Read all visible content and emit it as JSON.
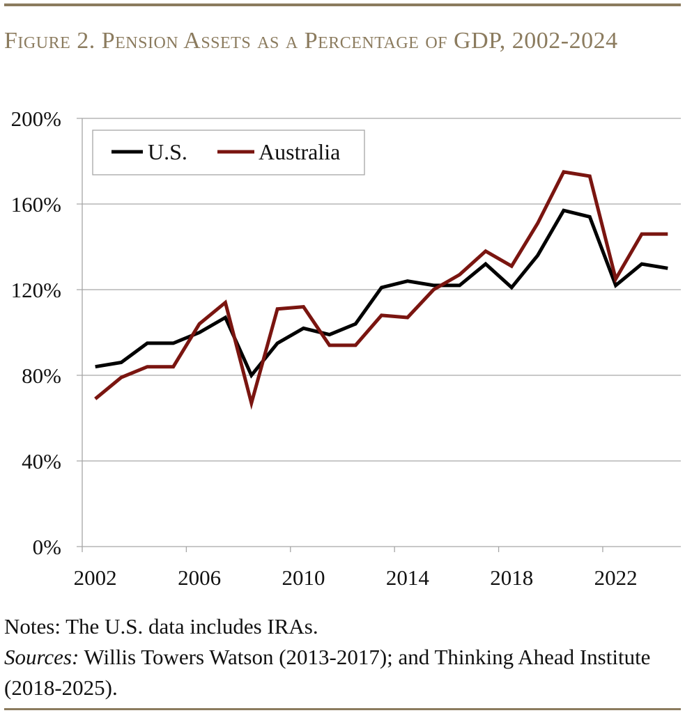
{
  "title": "Figure 2. Pension Assets as a Percentage of GDP, 2002-2024",
  "notes": "Notes: The U.S. data includes IRAs.",
  "sources_label": "Sources:",
  "sources_text": " Willis Towers Watson (2013-2017); and Thinking Ahead Institute (2018-2025).",
  "colors": {
    "rule": "#8b7b5e",
    "us": "#000000",
    "australia": "#7a1510",
    "grid": "#a6a6a6"
  },
  "chart_data": {
    "type": "line",
    "title": "Figure 2. Pension Assets as a Percentage of GDP, 2002-2024",
    "x": [
      2002,
      2003,
      2004,
      2005,
      2006,
      2007,
      2008,
      2009,
      2010,
      2011,
      2012,
      2013,
      2014,
      2015,
      2016,
      2017,
      2018,
      2019,
      2020,
      2021,
      2022,
      2023,
      2024
    ],
    "x_tick_labels": [
      "2002",
      "2006",
      "2010",
      "2014",
      "2018",
      "2022"
    ],
    "y_tick_labels": [
      "0%",
      "40%",
      "80%",
      "120%",
      "160%",
      "200%"
    ],
    "ylim": [
      0,
      200
    ],
    "grid": "horizontal",
    "legend": "top-left",
    "series": [
      {
        "name": "U.S.",
        "color": "#000000",
        "values": [
          84,
          86,
          95,
          95,
          100,
          107,
          80,
          95,
          102,
          99,
          104,
          121,
          124,
          122,
          122,
          132,
          121,
          136,
          157,
          154,
          122,
          132,
          130
        ]
      },
      {
        "name": "Australia",
        "color": "#7a1510",
        "values": [
          69,
          79,
          84,
          84,
          104,
          114,
          67,
          111,
          112,
          94,
          94,
          108,
          107,
          120,
          127,
          138,
          131,
          151,
          175,
          173,
          125,
          146,
          146
        ]
      }
    ]
  }
}
